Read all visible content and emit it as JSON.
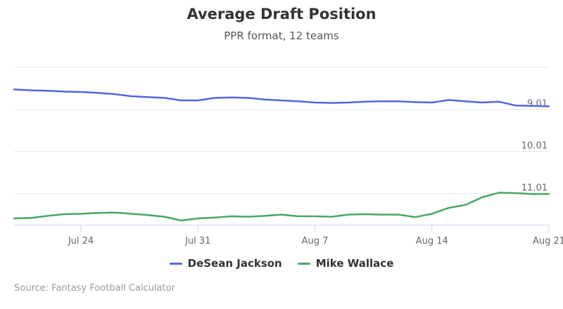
{
  "chart_data": {
    "type": "line",
    "title": "Average Draft Position",
    "subtitle": "PPR format, 12 teams",
    "x_ticks": [
      "Jul 24",
      "Jul 31",
      "Aug 7",
      "Aug 14",
      "Aug 21"
    ],
    "x_tick_dates": [
      24,
      31,
      38,
      45,
      52
    ],
    "x_range": [
      20,
      52
    ],
    "y_ticks": [
      "9.01",
      "10.01",
      "11.01"
    ],
    "y_tick_values": [
      9.01,
      10.01,
      11.01
    ],
    "y_range": [
      7.75,
      11.75
    ],
    "y_reversed": true,
    "grid": true,
    "legend_position": "bottom-center",
    "x": [
      20,
      21,
      22,
      23,
      24,
      25,
      26,
      27,
      28,
      29,
      30,
      31,
      32,
      33,
      34,
      35,
      36,
      37,
      38,
      39,
      40,
      41,
      42,
      43,
      44,
      45,
      46,
      47,
      48,
      49,
      50,
      51,
      52
    ],
    "series": [
      {
        "name": "DeSean Jackson",
        "color": "#5067e0",
        "values": [
          8.54,
          8.56,
          8.57,
          8.59,
          8.6,
          8.62,
          8.65,
          8.7,
          8.72,
          8.74,
          8.8,
          8.8,
          8.74,
          8.73,
          8.74,
          8.78,
          8.8,
          8.82,
          8.85,
          8.86,
          8.85,
          8.83,
          8.82,
          8.82,
          8.84,
          8.85,
          8.79,
          8.82,
          8.85,
          8.83,
          8.92,
          8.93,
          8.94
        ]
      },
      {
        "name": "Mike Wallace",
        "color": "#4aa564",
        "values": [
          11.6,
          11.59,
          11.54,
          11.5,
          11.49,
          11.47,
          11.46,
          11.49,
          11.52,
          11.56,
          11.65,
          11.6,
          11.58,
          11.55,
          11.56,
          11.54,
          11.51,
          11.55,
          11.55,
          11.56,
          11.51,
          11.5,
          11.51,
          11.51,
          11.57,
          11.49,
          11.35,
          11.28,
          11.1,
          10.99,
          11.0,
          11.02,
          11.02
        ]
      }
    ]
  },
  "credit": "Source: Fantasy Football Calculator"
}
